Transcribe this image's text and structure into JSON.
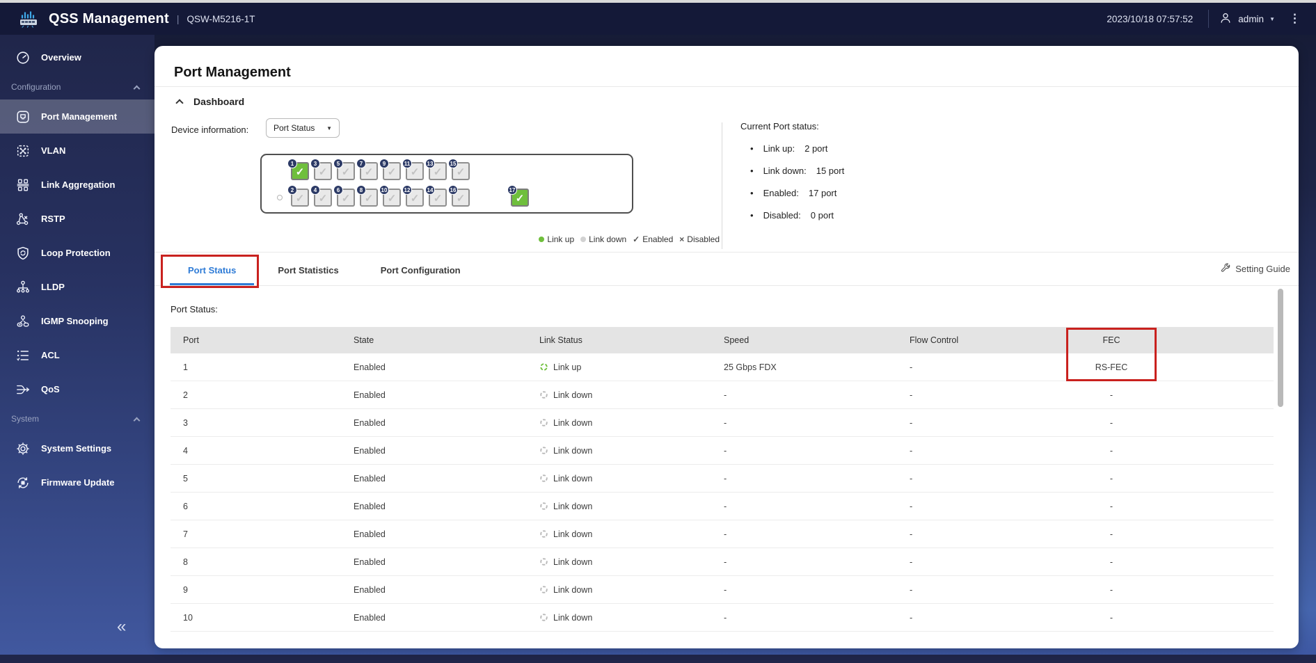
{
  "header": {
    "app_title": "QSS Management",
    "separator": "|",
    "device_model": "QSW-M5216-1T",
    "datetime": "2023/10/18 07:57:52",
    "username": "admin",
    "user_caret": "▼",
    "more_menu": "⋮"
  },
  "sidebar": {
    "entries": [
      {
        "type": "item",
        "label": "Overview",
        "icon": "gauge-icon",
        "active": false
      },
      {
        "type": "section",
        "label": "Configuration",
        "icon": "chevron-up-icon"
      },
      {
        "type": "item",
        "label": "Port Management",
        "icon": "ethernet-port-icon",
        "active": true
      },
      {
        "type": "item",
        "label": "VLAN",
        "icon": "vlan-grid-icon",
        "active": false
      },
      {
        "type": "item",
        "label": "Link Aggregation",
        "icon": "aggregation-icon",
        "active": false
      },
      {
        "type": "item",
        "label": "RSTP",
        "icon": "rstp-tree-icon",
        "active": false
      },
      {
        "type": "item",
        "label": "Loop Protection",
        "icon": "shield-loop-icon",
        "active": false
      },
      {
        "type": "item",
        "label": "LLDP",
        "icon": "lldp-hierarchy-icon",
        "active": false
      },
      {
        "type": "item",
        "label": "IGMP Snooping",
        "icon": "igmp-user-icon",
        "active": false
      },
      {
        "type": "item",
        "label": "ACL",
        "icon": "acl-list-icon",
        "active": false
      },
      {
        "type": "item",
        "label": "QoS",
        "icon": "qos-merge-icon",
        "active": false
      },
      {
        "type": "section",
        "label": "System",
        "icon": "chevron-up-icon"
      },
      {
        "type": "item",
        "label": "System Settings",
        "icon": "gear-icon",
        "active": false
      },
      {
        "type": "item",
        "label": "Firmware Update",
        "icon": "firmware-refresh-icon",
        "active": false
      }
    ],
    "collapse_label": "«"
  },
  "page": {
    "title": "Port Management",
    "dashboard": {
      "section_label": "Dashboard",
      "device_info_label": "Device information:",
      "view_select": {
        "value": "Port Status",
        "caret": "▼"
      },
      "switch_diagram": {
        "top_row_ports": [
          {
            "num": "1",
            "link": "up",
            "enabled": true
          },
          {
            "num": "3",
            "link": "down",
            "enabled": true
          },
          {
            "num": "5",
            "link": "down",
            "enabled": true
          },
          {
            "num": "7",
            "link": "down",
            "enabled": true
          },
          {
            "num": "9",
            "link": "down",
            "enabled": true
          },
          {
            "num": "11",
            "link": "down",
            "enabled": true
          },
          {
            "num": "13",
            "link": "down",
            "enabled": true
          },
          {
            "num": "15",
            "link": "down",
            "enabled": true
          }
        ],
        "bottom_row_ports": [
          {
            "num": "2",
            "link": "down",
            "enabled": true
          },
          {
            "num": "4",
            "link": "down",
            "enabled": true
          },
          {
            "num": "6",
            "link": "down",
            "enabled": true
          },
          {
            "num": "8",
            "link": "down",
            "enabled": true
          },
          {
            "num": "10",
            "link": "down",
            "enabled": true
          },
          {
            "num": "12",
            "link": "down",
            "enabled": true
          },
          {
            "num": "14",
            "link": "down",
            "enabled": true
          },
          {
            "num": "16",
            "link": "down",
            "enabled": true
          }
        ],
        "uplink_port": {
          "num": "17",
          "link": "up",
          "enabled": true
        }
      },
      "legend": [
        {
          "label": "Link up",
          "marker": "dot",
          "color": "#6fbf3c"
        },
        {
          "label": "Link down",
          "marker": "dot",
          "color": "#d2d2d2"
        },
        {
          "label": "Enabled",
          "marker": "check",
          "symbol": "✓"
        },
        {
          "label": "Disabled",
          "marker": "cross",
          "symbol": "×"
        }
      ],
      "status_summary": {
        "title": "Current Port status:",
        "bullet": "•",
        "items": [
          {
            "label": "Link up:",
            "value": "2 port"
          },
          {
            "label": "Link down:",
            "value": "15 port"
          },
          {
            "label": "Enabled:",
            "value": "17 port"
          },
          {
            "label": "Disabled:",
            "value": "0 port"
          }
        ]
      }
    },
    "tabs": [
      {
        "label": "Port Status",
        "active": true,
        "annotated": true
      },
      {
        "label": "Port Statistics",
        "active": false,
        "annotated": false
      },
      {
        "label": "Port Configuration",
        "active": false,
        "annotated": false
      }
    ],
    "setting_guide_label": "Setting Guide",
    "table": {
      "caption": "Port Status:",
      "columns": [
        "Port",
        "State",
        "Link Status",
        "Speed",
        "Flow Control",
        "FEC"
      ],
      "rows": [
        {
          "port": "1",
          "state": "Enabled",
          "link": "up",
          "link_status": "Link up",
          "speed": "25 Gbps FDX",
          "flow_control": "-",
          "fec": "RS-FEC"
        },
        {
          "port": "2",
          "state": "Enabled",
          "link": "down",
          "link_status": "Link down",
          "speed": "-",
          "flow_control": "-",
          "fec": "-"
        },
        {
          "port": "3",
          "state": "Enabled",
          "link": "down",
          "link_status": "Link down",
          "speed": "-",
          "flow_control": "-",
          "fec": "-"
        },
        {
          "port": "4",
          "state": "Enabled",
          "link": "down",
          "link_status": "Link down",
          "speed": "-",
          "flow_control": "-",
          "fec": "-"
        },
        {
          "port": "5",
          "state": "Enabled",
          "link": "down",
          "link_status": "Link down",
          "speed": "-",
          "flow_control": "-",
          "fec": "-"
        },
        {
          "port": "6",
          "state": "Enabled",
          "link": "down",
          "link_status": "Link down",
          "speed": "-",
          "flow_control": "-",
          "fec": "-"
        },
        {
          "port": "7",
          "state": "Enabled",
          "link": "down",
          "link_status": "Link down",
          "speed": "-",
          "flow_control": "-",
          "fec": "-"
        },
        {
          "port": "8",
          "state": "Enabled",
          "link": "down",
          "link_status": "Link down",
          "speed": "-",
          "flow_control": "-",
          "fec": "-"
        },
        {
          "port": "9",
          "state": "Enabled",
          "link": "down",
          "link_status": "Link down",
          "speed": "-",
          "flow_control": "-",
          "fec": "-"
        },
        {
          "port": "10",
          "state": "Enabled",
          "link": "down",
          "link_status": "Link down",
          "speed": "-",
          "flow_control": "-",
          "fec": "-"
        }
      ]
    }
  },
  "colors": {
    "accent_blue": "#2e7bd6",
    "link_up_green": "#6fbf3c",
    "link_down_gray": "#b9b9b9",
    "annotation_red": "#c9211e",
    "header_bg": "#141938"
  }
}
